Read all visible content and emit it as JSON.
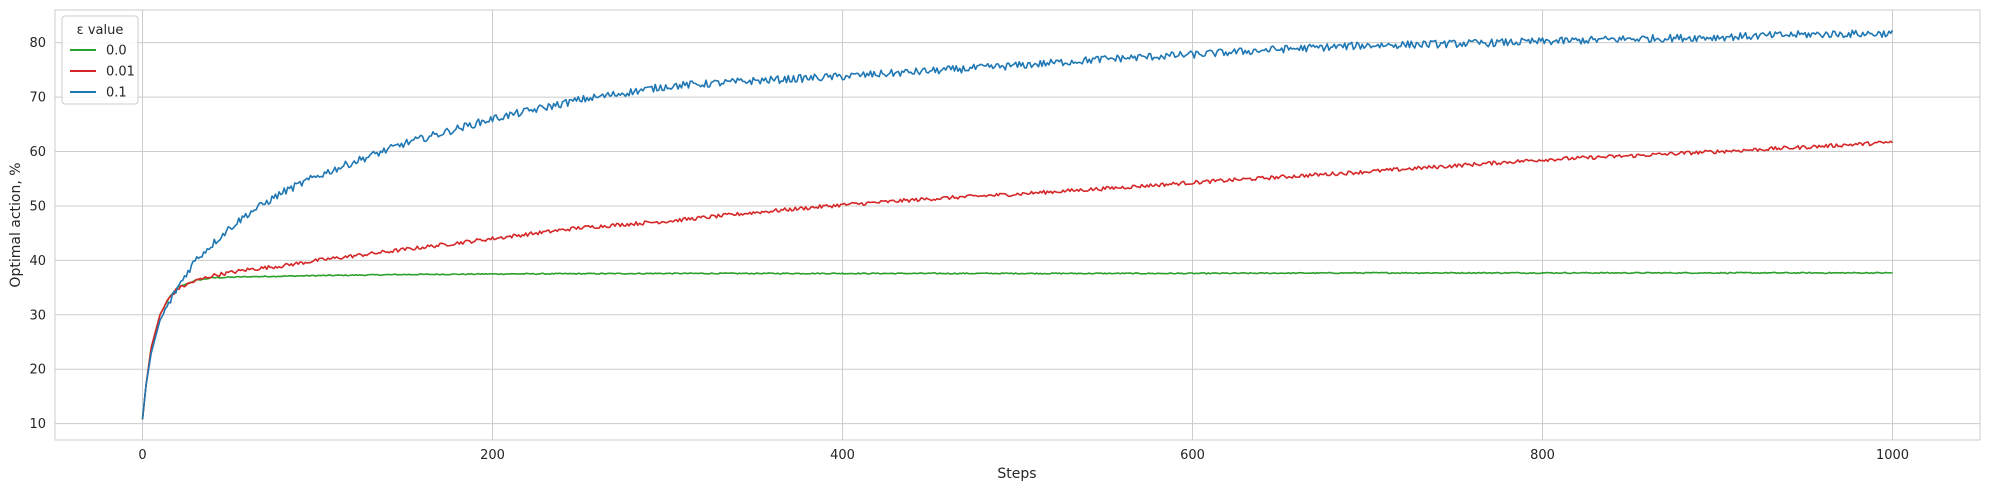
{
  "chart_data": {
    "type": "line",
    "xlabel": "Steps",
    "ylabel": "Optimal action, %",
    "xlim": [
      -50,
      1050
    ],
    "ylim": [
      7,
      86
    ],
    "xticks": [
      0,
      200,
      400,
      600,
      800,
      1000
    ],
    "yticks": [
      10,
      20,
      30,
      40,
      50,
      60,
      70,
      80
    ],
    "grid": true,
    "legend": {
      "title": "ε value",
      "placement": "top-left"
    },
    "series": [
      {
        "name": "0.0",
        "color": "#2ca02c",
        "noise": 0.1,
        "x": [
          0,
          2,
          5,
          10,
          15,
          20,
          30,
          40,
          60,
          80,
          100,
          150,
          200,
          300,
          400,
          500,
          600,
          700,
          800,
          900,
          1000
        ],
        "y": [
          10.8,
          17,
          24,
          30,
          33,
          35,
          36.3,
          36.8,
          37.0,
          37.1,
          37.2,
          37.4,
          37.5,
          37.6,
          37.6,
          37.6,
          37.6,
          37.7,
          37.7,
          37.7,
          37.7
        ]
      },
      {
        "name": "0.01",
        "color": "#d62728",
        "noise": 0.35,
        "x": [
          0,
          2,
          5,
          10,
          15,
          20,
          30,
          40,
          60,
          80,
          100,
          150,
          200,
          250,
          300,
          350,
          400,
          450,
          500,
          550,
          600,
          650,
          700,
          750,
          800,
          850,
          900,
          950,
          1000
        ],
        "y": [
          10.8,
          17,
          24,
          30,
          33,
          34.8,
          36.2,
          37.2,
          38.3,
          39.0,
          40.0,
          42.0,
          44.0,
          46.0,
          47.2,
          48.8,
          50.2,
          51.3,
          52.2,
          53.2,
          54.3,
          55.3,
          56.3,
          57.4,
          58.5,
          59.2,
          60.0,
          60.8,
          61.7
        ]
      },
      {
        "name": "0.1",
        "color": "#1f77b4",
        "noise": 0.7,
        "x": [
          0,
          2,
          5,
          10,
          15,
          20,
          30,
          40,
          50,
          60,
          80,
          100,
          120,
          150,
          200,
          250,
          300,
          350,
          400,
          450,
          500,
          550,
          600,
          650,
          700,
          750,
          800,
          850,
          900,
          950,
          1000
        ],
        "y": [
          10.8,
          17,
          23,
          29,
          32,
          35,
          40,
          43,
          46,
          48.5,
          52.5,
          55.5,
          58.0,
          61.5,
          66.0,
          69.5,
          72.0,
          73.0,
          73.8,
          74.8,
          75.8,
          77.0,
          77.8,
          78.8,
          79.5,
          79.8,
          80.2,
          80.7,
          81.0,
          81.5,
          81.7
        ]
      }
    ]
  }
}
